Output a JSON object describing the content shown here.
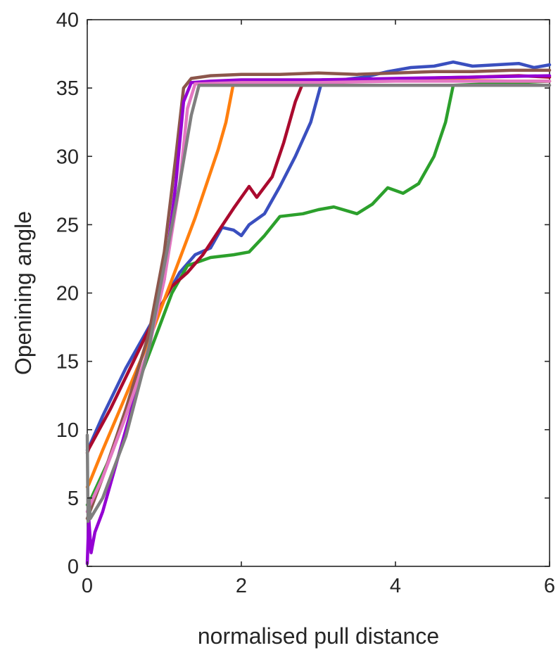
{
  "chart_data": {
    "type": "line",
    "xlabel": "normalised pull distance",
    "ylabel": "Openining angle",
    "xlim": [
      0,
      6
    ],
    "ylim": [
      0,
      40
    ],
    "x_ticks": [
      0,
      2,
      4,
      6
    ],
    "y_ticks": [
      0,
      5,
      10,
      15,
      20,
      25,
      30,
      35,
      40
    ],
    "grid": false,
    "legend": "none",
    "series": [
      {
        "color": "#3a4fbf",
        "x": [
          0,
          0.02,
          0.2,
          0.5,
          0.8,
          1.0,
          1.2,
          1.4,
          1.6,
          1.75,
          1.9,
          2.0,
          2.1,
          2.3,
          2.5,
          2.7,
          2.9,
          3.05,
          3.3,
          3.6,
          3.9,
          4.2,
          4.5,
          4.75,
          5.0,
          5.3,
          5.6,
          5.8,
          6.0
        ],
        "y": [
          8.5,
          8.7,
          11.0,
          14.5,
          17.5,
          19.5,
          21.5,
          22.8,
          23.3,
          24.8,
          24.6,
          24.2,
          25.0,
          25.8,
          27.8,
          30.0,
          32.5,
          35.6,
          35.6,
          35.8,
          36.2,
          36.5,
          36.6,
          36.9,
          36.6,
          36.7,
          36.8,
          36.5,
          36.7
        ]
      },
      {
        "color": "#2ca02c",
        "x": [
          0,
          0.02,
          0.3,
          0.6,
          0.9,
          1.1,
          1.3,
          1.6,
          1.9,
          2.1,
          2.3,
          2.5,
          2.8,
          3.0,
          3.2,
          3.5,
          3.7,
          3.9,
          4.1,
          4.3,
          4.5,
          4.65,
          4.75,
          5.2,
          5.6,
          6.0
        ],
        "y": [
          4.5,
          4.6,
          8.0,
          12.5,
          17.0,
          20.0,
          22.0,
          22.6,
          22.8,
          23.0,
          24.2,
          25.6,
          25.8,
          26.1,
          26.3,
          25.8,
          26.5,
          27.7,
          27.3,
          28.0,
          30.0,
          32.5,
          35.2,
          35.3,
          35.4,
          35.5
        ]
      },
      {
        "color": "#aa0a2e",
        "x": [
          0,
          0.02,
          0.3,
          0.6,
          0.9,
          1.1,
          1.3,
          1.5,
          1.7,
          1.9,
          2.0,
          2.1,
          2.2,
          2.4,
          2.55,
          2.7,
          2.8,
          3.5,
          4.2,
          5.0,
          5.6,
          6.0
        ],
        "y": [
          8.3,
          8.6,
          11.5,
          15.0,
          18.5,
          20.5,
          21.5,
          22.8,
          24.5,
          26.2,
          27.0,
          27.8,
          27.0,
          28.5,
          31.0,
          34.0,
          35.4,
          35.6,
          35.7,
          35.8,
          35.9,
          35.8
        ]
      },
      {
        "color": "#ff7f0e",
        "x": [
          0,
          0.02,
          0.2,
          0.5,
          0.8,
          1.0,
          1.2,
          1.4,
          1.55,
          1.7,
          1.8,
          1.9,
          2.5,
          3.5,
          4.5,
          5.5,
          6.0
        ],
        "y": [
          5.8,
          6.0,
          8.5,
          12.5,
          16.5,
          19.5,
          22.5,
          25.5,
          28.0,
          30.5,
          32.5,
          35.4,
          35.5,
          35.6,
          35.6,
          35.5,
          35.5
        ]
      },
      {
        "color": "#8c564b",
        "x": [
          0,
          0.02,
          0.2,
          0.5,
          0.8,
          1.0,
          1.15,
          1.25,
          1.35,
          1.6,
          2.0,
          2.5,
          3.0,
          3.5,
          4.0,
          4.5,
          5.0,
          5.5,
          6.0
        ],
        "y": [
          3.5,
          3.8,
          6.5,
          11.5,
          17.0,
          23.0,
          30.0,
          35.0,
          35.7,
          35.9,
          36.0,
          36.0,
          36.1,
          36.0,
          36.1,
          36.2,
          36.2,
          36.3,
          36.3
        ]
      },
      {
        "color": "#9400d3",
        "x": [
          0,
          0.02,
          0.05,
          0.1,
          0.2,
          0.5,
          0.8,
          1.0,
          1.15,
          1.25,
          1.35,
          1.6,
          2.0,
          3.0,
          4.0,
          5.0,
          6.0
        ],
        "y": [
          0.2,
          3.5,
          1.0,
          2.5,
          4.0,
          10.0,
          16.0,
          21.0,
          28.0,
          34.0,
          35.4,
          35.5,
          35.6,
          35.6,
          35.7,
          35.8,
          35.9
        ]
      },
      {
        "color": "#e377c2",
        "x": [
          0,
          0.02,
          0.2,
          0.5,
          0.8,
          1.0,
          1.2,
          1.3,
          1.4,
          2.0,
          3.0,
          4.0,
          5.0,
          6.0
        ],
        "y": [
          4.0,
          4.3,
          6.5,
          11.0,
          16.0,
          21.0,
          28.0,
          33.5,
          35.3,
          35.4,
          35.4,
          35.5,
          35.5,
          35.5
        ]
      },
      {
        "color": "#7f7f7f",
        "x": [
          0,
          0.01,
          0.02,
          0.04,
          0.2,
          0.5,
          0.8,
          1.0,
          1.2,
          1.35,
          1.45,
          2.0,
          3.0,
          4.0,
          5.0,
          6.0
        ],
        "y": [
          9.6,
          3.3,
          5.0,
          3.5,
          5.0,
          9.5,
          16.0,
          22.0,
          28.0,
          33.0,
          35.2,
          35.2,
          35.2,
          35.2,
          35.2,
          35.2
        ]
      }
    ]
  }
}
